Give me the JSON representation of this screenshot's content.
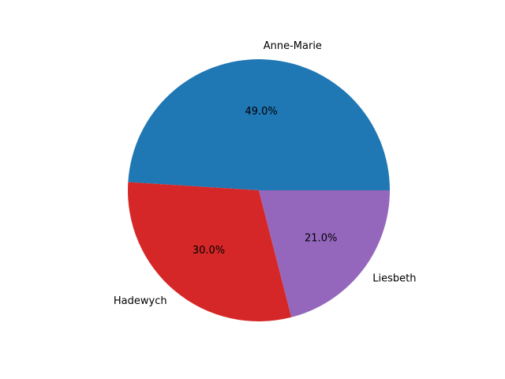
{
  "chart_data": {
    "type": "pie",
    "title": "",
    "start_angle_degrees": 0,
    "direction": "counterclockwise",
    "slices": [
      {
        "label": "Anne-Marie",
        "value": 49.0,
        "percent_label": "49.0%",
        "color": "#1f77b4"
      },
      {
        "label": "Hadewych",
        "value": 30.0,
        "percent_label": "30.0%",
        "color": "#d62728"
      },
      {
        "label": "Liesbeth",
        "value": 21.0,
        "percent_label": "21.0%",
        "color": "#9467bd"
      }
    ]
  }
}
